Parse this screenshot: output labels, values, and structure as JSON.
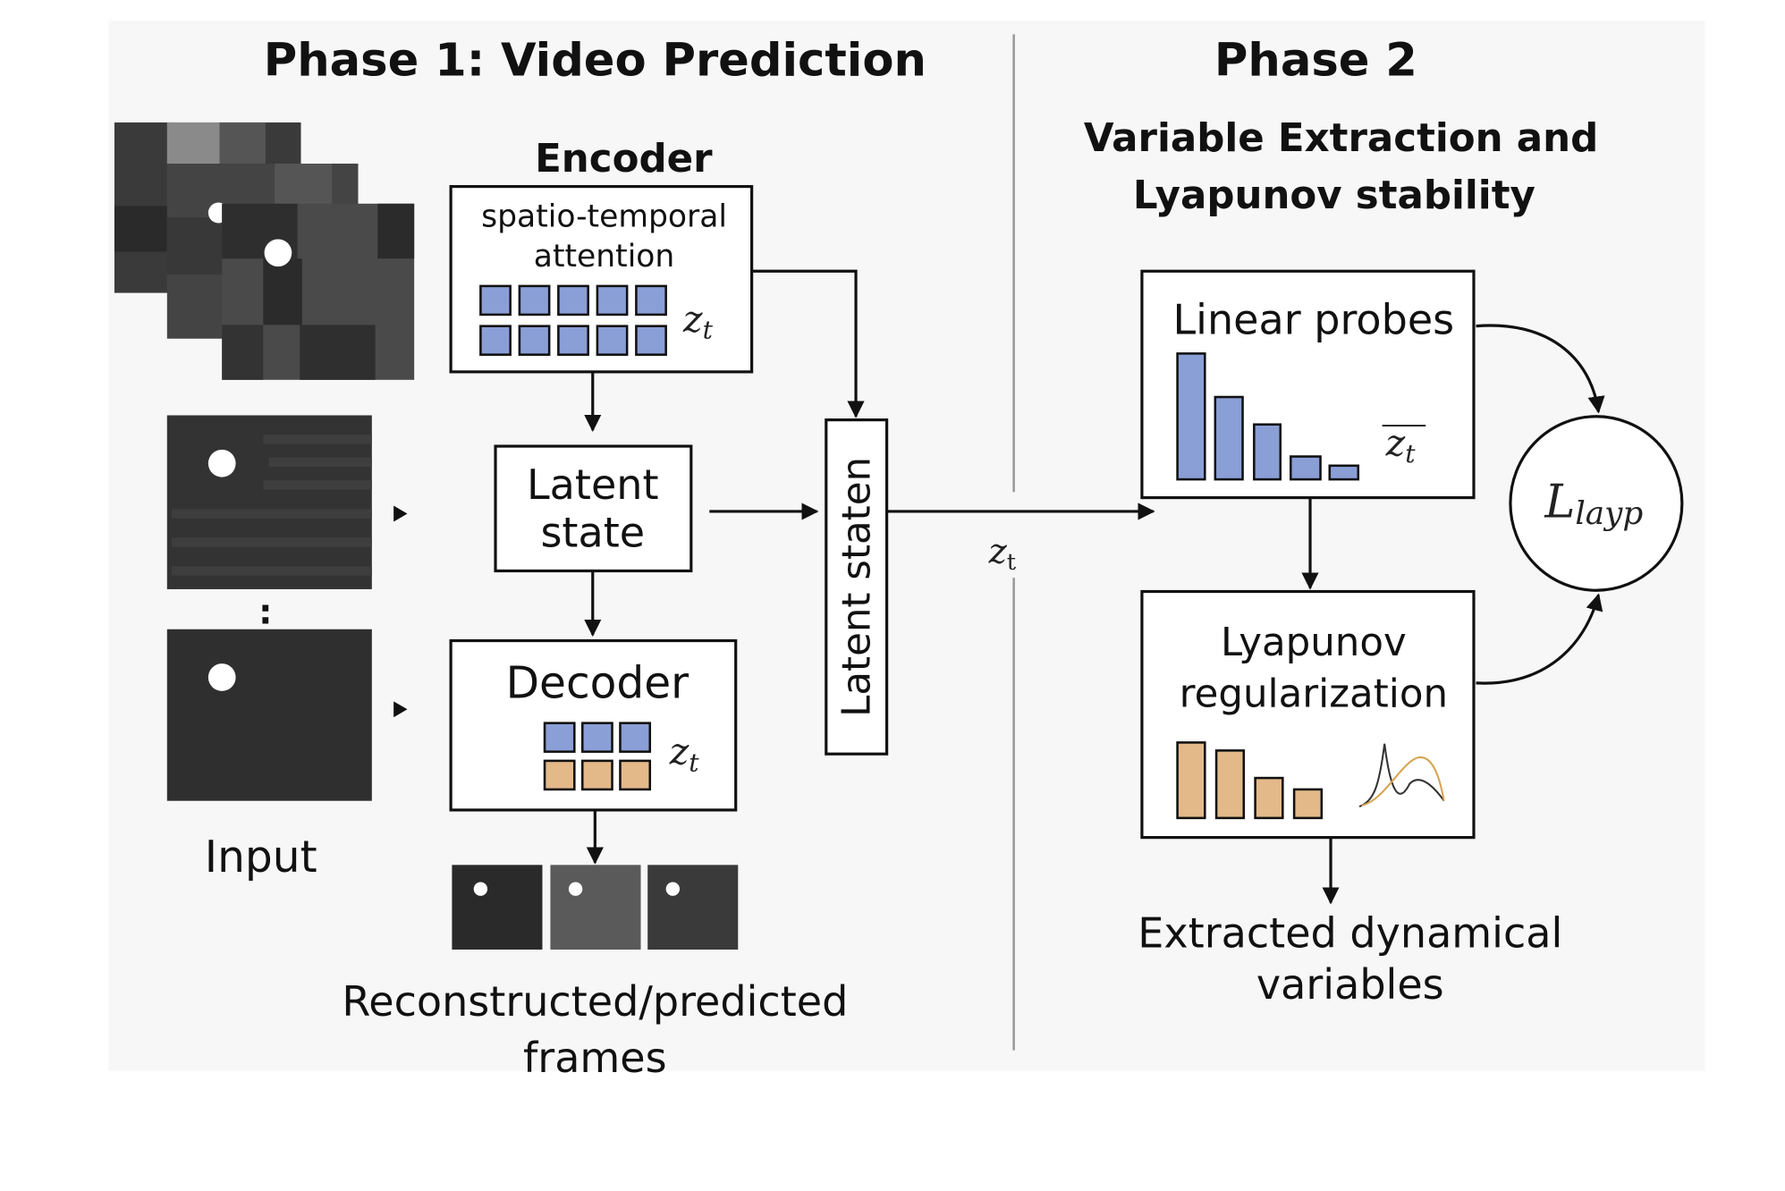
{
  "phase1": {
    "title": "Phase 1:  Video Prediction",
    "input_label": "Input",
    "ellipsis": ":",
    "encoder": {
      "title": "Encoder",
      "line1": "spatio-temporal",
      "line2": "attention",
      "symbol": "z",
      "subscript": "t"
    },
    "latent_state": {
      "line1": "Latent",
      "line2": "state"
    },
    "decoder": {
      "title": "Decoder",
      "symbol": "z",
      "subscript": "t"
    },
    "latent_staten": "Latent staten",
    "output_label": {
      "line1": "Reconstructed/predicted",
      "line2": "frames"
    }
  },
  "connector": {
    "symbol": "z",
    "subscript": "t"
  },
  "phase2": {
    "title": "Phase 2",
    "subtitle1": "Variable Extraction and",
    "subtitle2": "Lyapunov stability",
    "linear_probes": {
      "title": "Linear probes",
      "symbol": "z",
      "subscript": "t"
    },
    "lyapunov": {
      "line1": "Lyapunov",
      "line2": "regularization"
    },
    "loss": {
      "symbol": "L",
      "subscript": "layp"
    },
    "output": {
      "line1": "Extracted dynamical",
      "line2": "variables"
    }
  },
  "colors": {
    "blue": "#8a9fd6",
    "orange": "#e3b98a",
    "panel": "#f7f7f7",
    "divider": "#9a9a9a"
  }
}
